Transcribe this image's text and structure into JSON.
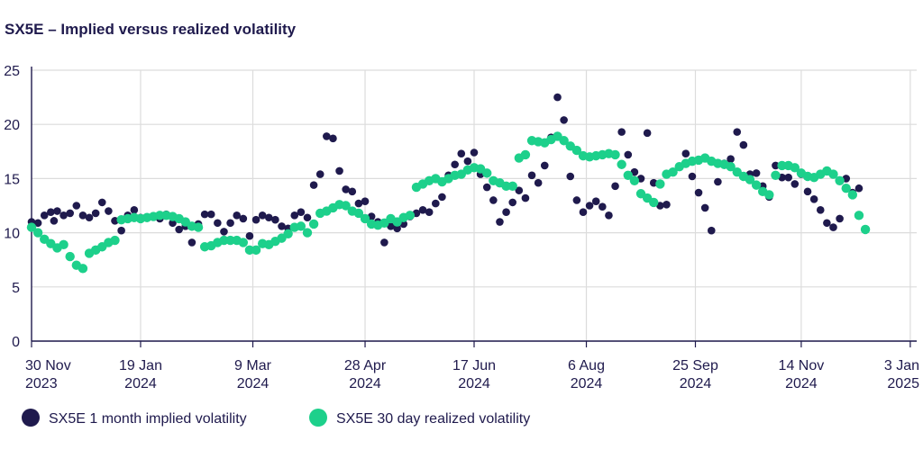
{
  "chart_data": {
    "type": "scatter",
    "title": "SX5E – Implied versus realized volatility",
    "xlabel": "",
    "ylabel": "",
    "ylim": [
      0,
      25
    ],
    "yticks": [
      0,
      5,
      10,
      15,
      20,
      25
    ],
    "x_unit": "trading day index (0 = 30 Nov 2023, 274 = 3 Jan 2025)",
    "xlim": [
      0,
      276
    ],
    "xticks": [
      {
        "x": 0,
        "line1": "30 Nov",
        "line2": "2023"
      },
      {
        "x": 34,
        "line1": "19 Jan",
        "line2": "2024"
      },
      {
        "x": 69,
        "line1": "9 Mar",
        "line2": "2024"
      },
      {
        "x": 104,
        "line1": "28 Apr",
        "line2": "2024"
      },
      {
        "x": 138,
        "line1": "17 Jun",
        "line2": "2024"
      },
      {
        "x": 173,
        "line1": "6 Aug",
        "line2": "2024"
      },
      {
        "x": 207,
        "line1": "25 Sep",
        "line2": "2024"
      },
      {
        "x": 240,
        "line1": "14 Nov",
        "line2": "2024"
      },
      {
        "x": 274,
        "line1": "3 Jan",
        "line2": "2025"
      }
    ],
    "grid": true,
    "legend_position": "bottom-left",
    "series": [
      {
        "name": "SX5E 1 month implied volatility",
        "color": "#1f1a4d",
        "points": [
          [
            0,
            11
          ],
          [
            2,
            10.9
          ],
          [
            4,
            11.6
          ],
          [
            6,
            11.9
          ],
          [
            7,
            11.1
          ],
          [
            8,
            12
          ],
          [
            10,
            11.6
          ],
          [
            12,
            11.8
          ],
          [
            14,
            12.5
          ],
          [
            16,
            11.6
          ],
          [
            18,
            11.4
          ],
          [
            20,
            11.8
          ],
          [
            22,
            12.8
          ],
          [
            24,
            12
          ],
          [
            26,
            11.1
          ],
          [
            28,
            10.2
          ],
          [
            30,
            11.6
          ],
          [
            32,
            12.1
          ],
          [
            34,
            11.4
          ],
          [
            36,
            11.4
          ],
          [
            38,
            11.5
          ],
          [
            40,
            11.3
          ],
          [
            42,
            11.7
          ],
          [
            44,
            10.9
          ],
          [
            46,
            10.3
          ],
          [
            48,
            10.6
          ],
          [
            50,
            9.1
          ],
          [
            52,
            10.8
          ],
          [
            54,
            11.7
          ],
          [
            56,
            11.7
          ],
          [
            58,
            10.9
          ],
          [
            60,
            10.1
          ],
          [
            62,
            10.9
          ],
          [
            64,
            11.6
          ],
          [
            66,
            11.3
          ],
          [
            68,
            9.7
          ],
          [
            70,
            11.2
          ],
          [
            72,
            11.6
          ],
          [
            74,
            11.4
          ],
          [
            76,
            11.2
          ],
          [
            78,
            10.6
          ],
          [
            80,
            10.4
          ],
          [
            82,
            11.6
          ],
          [
            84,
            11.9
          ],
          [
            86,
            11.4
          ],
          [
            88,
            14.4
          ],
          [
            90,
            15.4
          ],
          [
            92,
            18.9
          ],
          [
            94,
            18.7
          ],
          [
            96,
            15.7
          ],
          [
            98,
            14
          ],
          [
            100,
            13.8
          ],
          [
            102,
            12.7
          ],
          [
            104,
            12.9
          ],
          [
            106,
            11.5
          ],
          [
            108,
            11
          ],
          [
            110,
            9.1
          ],
          [
            112,
            10.6
          ],
          [
            114,
            10.4
          ],
          [
            116,
            10.8
          ],
          [
            118,
            11.5
          ],
          [
            120,
            11.8
          ],
          [
            122,
            12.1
          ],
          [
            124,
            11.9
          ],
          [
            126,
            12.7
          ],
          [
            128,
            13.3
          ],
          [
            130,
            15.3
          ],
          [
            132,
            16.3
          ],
          [
            134,
            17.3
          ],
          [
            136,
            16.6
          ],
          [
            138,
            17.4
          ],
          [
            140,
            15.4
          ],
          [
            142,
            14.2
          ],
          [
            144,
            13
          ],
          [
            146,
            11
          ],
          [
            148,
            11.9
          ],
          [
            150,
            12.8
          ],
          [
            152,
            13.9
          ],
          [
            154,
            13.2
          ],
          [
            156,
            15.3
          ],
          [
            158,
            14.6
          ],
          [
            160,
            16.2
          ],
          [
            162,
            18.8
          ],
          [
            164,
            22.5
          ],
          [
            166,
            20.4
          ],
          [
            168,
            15.2
          ],
          [
            170,
            13
          ],
          [
            172,
            11.9
          ],
          [
            174,
            12.5
          ],
          [
            176,
            12.9
          ],
          [
            178,
            12.4
          ],
          [
            180,
            11.6
          ],
          [
            182,
            14.3
          ],
          [
            184,
            19.3
          ],
          [
            186,
            17.2
          ],
          [
            188,
            15.6
          ],
          [
            190,
            15
          ],
          [
            192,
            19.2
          ],
          [
            194,
            14.6
          ],
          [
            196,
            12.5
          ],
          [
            198,
            12.6
          ],
          [
            200,
            15.6
          ],
          [
            202,
            16.1
          ],
          [
            204,
            17.3
          ],
          [
            206,
            15.2
          ],
          [
            208,
            13.7
          ],
          [
            210,
            12.3
          ],
          [
            212,
            10.2
          ],
          [
            214,
            14.7
          ],
          [
            216,
            16.4
          ],
          [
            218,
            16.8
          ],
          [
            220,
            19.3
          ],
          [
            222,
            18.1
          ],
          [
            224,
            15.4
          ],
          [
            226,
            15.5
          ],
          [
            228,
            14.3
          ],
          [
            230,
            13.3
          ],
          [
            232,
            16.2
          ],
          [
            234,
            15.1
          ],
          [
            236,
            15.1
          ],
          [
            238,
            14.5
          ],
          [
            240,
            15.4
          ],
          [
            242,
            13.8
          ],
          [
            244,
            13.1
          ],
          [
            246,
            12.1
          ],
          [
            248,
            10.9
          ],
          [
            250,
            10.5
          ],
          [
            252,
            11.3
          ],
          [
            254,
            15
          ],
          [
            256,
            13.7
          ],
          [
            258,
            14.1
          ]
        ]
      },
      {
        "name": "SX5E 30 day realized volatility",
        "color": "#1dd08b",
        "points": [
          [
            0,
            10.5
          ],
          [
            2,
            10
          ],
          [
            4,
            9.4
          ],
          [
            6,
            9
          ],
          [
            8,
            8.6
          ],
          [
            10,
            8.9
          ],
          [
            12,
            7.8
          ],
          [
            14,
            7
          ],
          [
            16,
            6.7
          ],
          [
            18,
            8.1
          ],
          [
            20,
            8.4
          ],
          [
            22,
            8.7
          ],
          [
            24,
            9.1
          ],
          [
            26,
            9.3
          ],
          [
            28,
            11.2
          ],
          [
            30,
            11.3
          ],
          [
            32,
            11.4
          ],
          [
            34,
            11.3
          ],
          [
            36,
            11.4
          ],
          [
            38,
            11.5
          ],
          [
            40,
            11.6
          ],
          [
            42,
            11.6
          ],
          [
            44,
            11.5
          ],
          [
            46,
            11.3
          ],
          [
            48,
            11
          ],
          [
            50,
            10.6
          ],
          [
            52,
            10.5
          ],
          [
            54,
            8.7
          ],
          [
            56,
            8.8
          ],
          [
            58,
            9.1
          ],
          [
            60,
            9.3
          ],
          [
            62,
            9.3
          ],
          [
            64,
            9.3
          ],
          [
            66,
            9.1
          ],
          [
            68,
            8.4
          ],
          [
            70,
            8.4
          ],
          [
            72,
            9
          ],
          [
            74,
            8.9
          ],
          [
            76,
            9.2
          ],
          [
            78,
            9.5
          ],
          [
            80,
            9.9
          ],
          [
            82,
            10.5
          ],
          [
            84,
            10.6
          ],
          [
            86,
            10
          ],
          [
            88,
            10.8
          ],
          [
            90,
            11.8
          ],
          [
            92,
            12
          ],
          [
            94,
            12.3
          ],
          [
            96,
            12.6
          ],
          [
            98,
            12.5
          ],
          [
            100,
            12
          ],
          [
            102,
            11.8
          ],
          [
            104,
            11.3
          ],
          [
            106,
            10.8
          ],
          [
            108,
            10.7
          ],
          [
            110,
            10.9
          ],
          [
            112,
            11.3
          ],
          [
            114,
            11
          ],
          [
            116,
            11.4
          ],
          [
            118,
            11.6
          ],
          [
            120,
            14.2
          ],
          [
            122,
            14.5
          ],
          [
            124,
            14.8
          ],
          [
            126,
            15
          ],
          [
            128,
            14.7
          ],
          [
            130,
            15
          ],
          [
            132,
            15.3
          ],
          [
            134,
            15.4
          ],
          [
            136,
            15.8
          ],
          [
            138,
            16
          ],
          [
            140,
            15.9
          ],
          [
            142,
            15.5
          ],
          [
            144,
            14.8
          ],
          [
            146,
            14.6
          ],
          [
            148,
            14.3
          ],
          [
            150,
            14.3
          ],
          [
            152,
            16.9
          ],
          [
            154,
            17.2
          ],
          [
            156,
            18.5
          ],
          [
            158,
            18.4
          ],
          [
            160,
            18.3
          ],
          [
            162,
            18.6
          ],
          [
            164,
            18.9
          ],
          [
            166,
            18.5
          ],
          [
            168,
            18
          ],
          [
            170,
            17.6
          ],
          [
            172,
            17.1
          ],
          [
            174,
            17
          ],
          [
            176,
            17.1
          ],
          [
            178,
            17.2
          ],
          [
            180,
            17.3
          ],
          [
            182,
            17.2
          ],
          [
            184,
            16.3
          ],
          [
            186,
            15.3
          ],
          [
            188,
            14.8
          ],
          [
            190,
            13.6
          ],
          [
            192,
            13.2
          ],
          [
            194,
            12.8
          ],
          [
            196,
            14.5
          ],
          [
            198,
            15.4
          ],
          [
            200,
            15.6
          ],
          [
            202,
            16.1
          ],
          [
            204,
            16.4
          ],
          [
            206,
            16.6
          ],
          [
            208,
            16.7
          ],
          [
            210,
            16.9
          ],
          [
            212,
            16.6
          ],
          [
            214,
            16.4
          ],
          [
            216,
            16.3
          ],
          [
            218,
            16.1
          ],
          [
            220,
            15.6
          ],
          [
            222,
            15.2
          ],
          [
            224,
            14.9
          ],
          [
            226,
            14.4
          ],
          [
            228,
            13.8
          ],
          [
            230,
            13.5
          ],
          [
            232,
            15.3
          ],
          [
            234,
            16.2
          ],
          [
            236,
            16.2
          ],
          [
            238,
            16
          ],
          [
            240,
            15.5
          ],
          [
            242,
            15.2
          ],
          [
            244,
            15.1
          ],
          [
            246,
            15.4
          ],
          [
            248,
            15.7
          ],
          [
            250,
            15.4
          ],
          [
            252,
            14.8
          ],
          [
            254,
            14.1
          ],
          [
            256,
            13.5
          ],
          [
            258,
            11.6
          ],
          [
            260,
            10.3
          ]
        ]
      }
    ]
  }
}
